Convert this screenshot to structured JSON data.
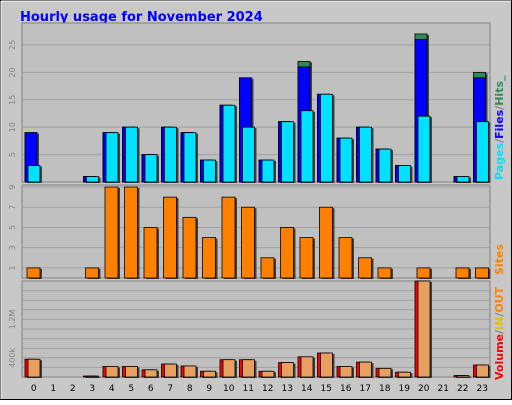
{
  "title": "Hourly usage for November 2024",
  "colors": {
    "background": "#c8c8c8",
    "panel": "#c0c0c0",
    "title": "#0000ff",
    "hits": "#2e8b57",
    "files": "#0000ff",
    "pages": "#00e0ff",
    "sites": "#ff8000",
    "volume": "#ff0000",
    "kbin": "#e8a060"
  },
  "chart_data": [
    {
      "type": "bar",
      "name": "hits-files-pages",
      "legend": [
        "Pages",
        "/",
        "Files",
        "/",
        "Hits",
        "_"
      ],
      "categories": [
        "0",
        "1",
        "2",
        "3",
        "4",
        "5",
        "6",
        "7",
        "8",
        "9",
        "10",
        "11",
        "12",
        "13",
        "14",
        "15",
        "16",
        "17",
        "18",
        "19",
        "20",
        "21",
        "22",
        "23"
      ],
      "ylim": [
        0,
        29
      ],
      "yticks": [
        "5",
        "10",
        "15",
        "20",
        "25"
      ],
      "series": [
        {
          "name": "Hits",
          "values": [
            9,
            0,
            0,
            1,
            9,
            10,
            5,
            10,
            9,
            4,
            14,
            19,
            4,
            11,
            22,
            16,
            8,
            10,
            6,
            3,
            27,
            0,
            1,
            20
          ]
        },
        {
          "name": "Files",
          "values": [
            9,
            0,
            0,
            1,
            9,
            10,
            5,
            10,
            9,
            4,
            14,
            19,
            4,
            11,
            21,
            16,
            8,
            10,
            6,
            3,
            26,
            0,
            1,
            19
          ]
        },
        {
          "name": "Pages",
          "values": [
            3,
            0,
            0,
            1,
            9,
            10,
            5,
            10,
            9,
            4,
            14,
            10,
            4,
            11,
            13,
            16,
            8,
            10,
            6,
            3,
            12,
            0,
            1,
            11
          ]
        }
      ]
    },
    {
      "type": "bar",
      "name": "sites",
      "legend": [
        "Sites"
      ],
      "categories": [
        "0",
        "1",
        "2",
        "3",
        "4",
        "5",
        "6",
        "7",
        "8",
        "9",
        "10",
        "11",
        "12",
        "13",
        "14",
        "15",
        "16",
        "17",
        "18",
        "19",
        "20",
        "21",
        "22",
        "23"
      ],
      "ylim": [
        0,
        9.2
      ],
      "yticks": [
        "1",
        "3",
        "5",
        "7",
        "9"
      ],
      "series": [
        {
          "name": "Sites",
          "values": [
            1,
            0,
            0,
            1,
            9,
            9,
            5,
            8,
            6,
            4,
            8,
            7,
            2,
            5,
            4,
            7,
            4,
            2,
            1,
            0,
            1,
            0,
            1,
            1
          ]
        }
      ]
    },
    {
      "type": "bar",
      "name": "volume",
      "legend": [
        "Volume",
        "/",
        "IN",
        "/",
        "OUT"
      ],
      "categories": [
        "0",
        "1",
        "2",
        "3",
        "4",
        "5",
        "6",
        "7",
        "8",
        "9",
        "10",
        "11",
        "12",
        "13",
        "14",
        "15",
        "16",
        "17",
        "18",
        "19",
        "20",
        "21",
        "22",
        "23"
      ],
      "ylim": [
        0,
        2000
      ],
      "yticks": [
        "400k",
        "1.2M"
      ],
      "series": [
        {
          "name": "Volume",
          "values": [
            370,
            0,
            0,
            20,
            220,
            220,
            150,
            270,
            230,
            120,
            360,
            360,
            120,
            300,
            420,
            500,
            220,
            310,
            180,
            100,
            2000,
            0,
            30,
            250
          ]
        },
        {
          "name": "IN",
          "values": [
            370,
            0,
            0,
            20,
            220,
            220,
            150,
            270,
            230,
            120,
            360,
            360,
            120,
            300,
            420,
            500,
            220,
            310,
            180,
            100,
            2000,
            0,
            30,
            250
          ]
        }
      ]
    }
  ]
}
